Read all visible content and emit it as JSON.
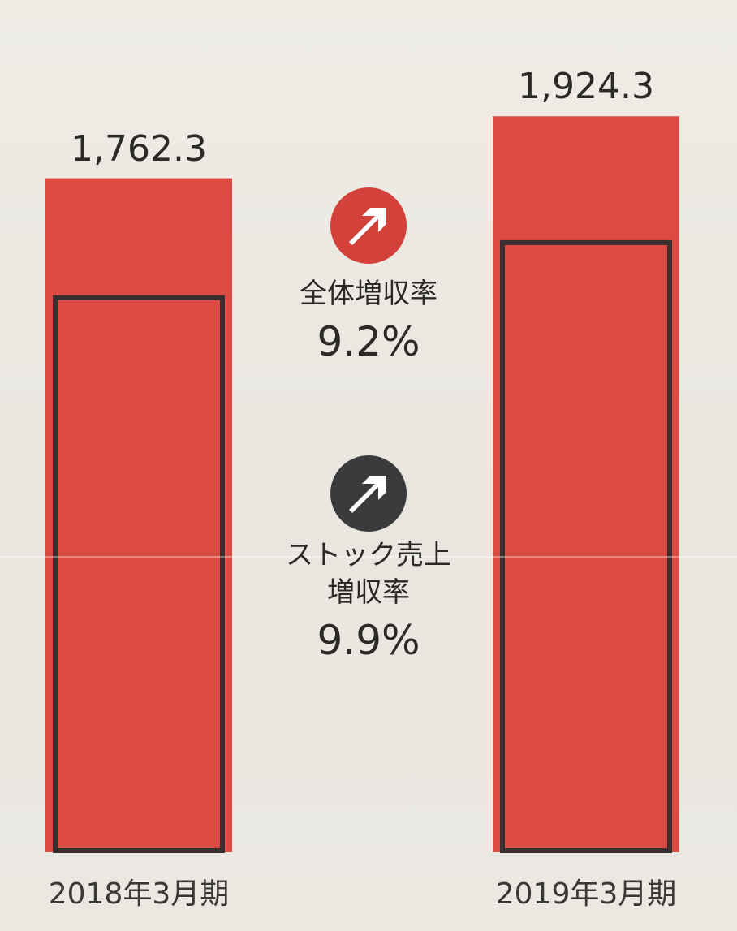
{
  "chart_data": {
    "type": "bar",
    "stacked": true,
    "categories": [
      "2018年3月期",
      "2019年3月期"
    ],
    "totals": [
      1762.3,
      1924.3
    ],
    "total_labels": [
      "1,762.3",
      "1,924.3"
    ],
    "stock_values_estimated": [
      1450,
      1594
    ],
    "ylim": [
      0,
      1950
    ],
    "grid": false,
    "legend": "none",
    "annotations": [
      {
        "label": "全体増収率",
        "value": "9.2%",
        "badge_color": "#d4403a"
      },
      {
        "label_lines": [
          "ストック売上",
          "増収率"
        ],
        "value": "9.9%",
        "badge_color": "#3b3b3d"
      }
    ]
  },
  "colors": {
    "bar_fill": "#db4a43",
    "bar_outline": "#3a2e2e",
    "badge_red": "#d4403a",
    "badge_dark": "#3b3b3d"
  },
  "icons": {
    "badge_1": "arrow-up-right-icon",
    "badge_2": "arrow-up-right-icon"
  }
}
